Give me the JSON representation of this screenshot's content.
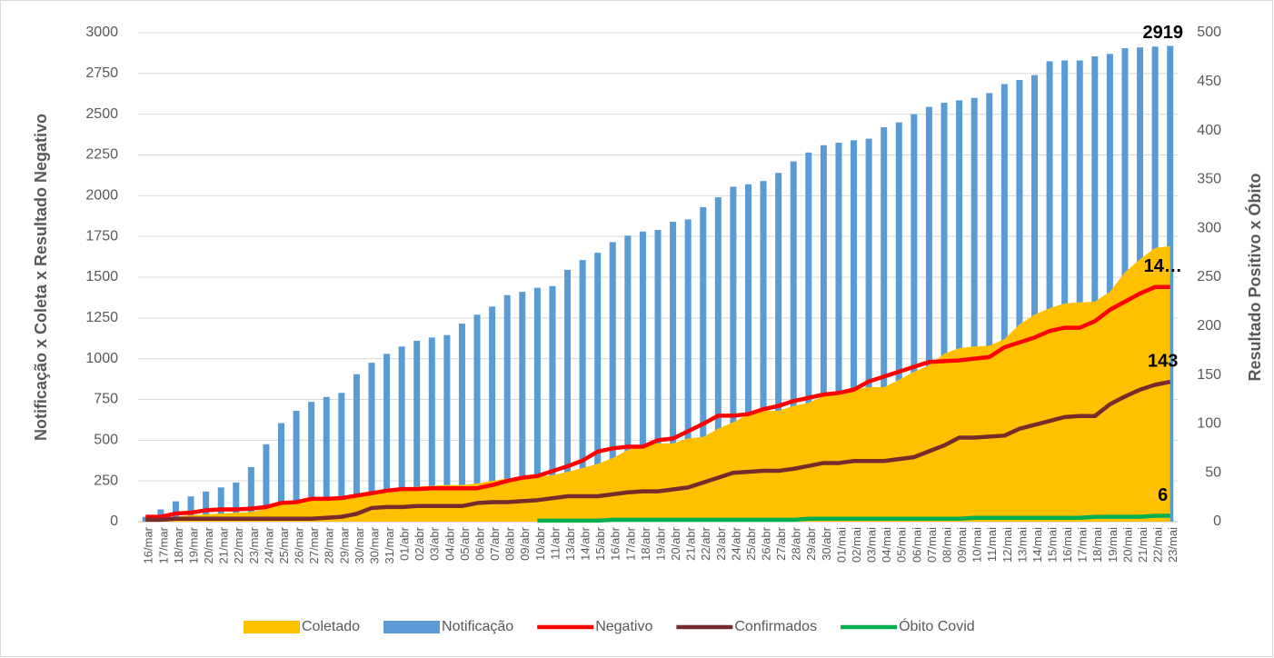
{
  "chart_data": {
    "type": "combo",
    "y_label": "Notificação x Coleta x Resultado Negativo",
    "y2_label": "Resultado Positivo x Óbito",
    "categories": [
      "16/mar",
      "17/mar",
      "18/mar",
      "19/mar",
      "20/mar",
      "21/mar",
      "22/mar",
      "23/mar",
      "24/mar",
      "25/mar",
      "26/mar",
      "27/mar",
      "28/mar",
      "29/mar",
      "30/mar",
      "30/mar",
      "31/mar",
      "01/abr",
      "02/abr",
      "03/abr",
      "04/abr",
      "05/abr",
      "06/abr",
      "07/abr",
      "08/abr",
      "09/abr",
      "10/abr",
      "11/abr",
      "13/abr",
      "14/abr",
      "15/abr",
      "16/abr",
      "17/abr",
      "18/abr",
      "19/abr",
      "20/abr",
      "21/abr",
      "22/abr",
      "23/abr",
      "24/abr",
      "25/abr",
      "26/abr",
      "27/abr",
      "28/abr",
      "29/abr",
      "30/abr",
      "01/mai",
      "02/mai",
      "03/mai",
      "04/mai",
      "05/mai",
      "06/mai",
      "07/mai",
      "08/mai",
      "09/mai",
      "10/mai",
      "11/mai",
      "12/mai",
      "13/mai",
      "14/mai",
      "15/mai",
      "16/mai",
      "17/mai",
      "18/mai",
      "19/mai",
      "20/mai",
      "21/mai",
      "22/mai",
      "23/mai"
    ],
    "ylim": [
      0,
      3000
    ],
    "yticks": [
      0,
      250,
      500,
      750,
      1000,
      1250,
      1500,
      1750,
      2000,
      2250,
      2500,
      2750,
      3000
    ],
    "y2lim": [
      0,
      500
    ],
    "y2ticks": [
      0,
      50,
      100,
      150,
      200,
      250,
      300,
      350,
      400,
      450,
      500
    ],
    "grid": true,
    "legend": "bottom",
    "series": [
      {
        "name": "Coletado",
        "type": "area",
        "color": "#ffc000",
        "values": [
          20,
          25,
          30,
          40,
          45,
          50,
          55,
          60,
          80,
          110,
          120,
          140,
          145,
          150,
          165,
          180,
          195,
          205,
          215,
          220,
          225,
          225,
          235,
          250,
          265,
          265,
          275,
          285,
          305,
          330,
          355,
          390,
          440,
          470,
          480,
          480,
          510,
          520,
          570,
          610,
          660,
          680,
          680,
          710,
          730,
          770,
          800,
          810,
          825,
          825,
          870,
          920,
          960,
          1030,
          1065,
          1075,
          1080,
          1120,
          1210,
          1270,
          1310,
          1340,
          1345,
          1350,
          1410,
          1530,
          1610,
          1680,
          1690
        ]
      },
      {
        "name": "Notificação",
        "type": "bar",
        "color": "#5b9bd5",
        "data_labels": "last",
        "values": [
          30,
          75,
          125,
          155,
          185,
          210,
          240,
          335,
          475,
          605,
          680,
          735,
          765,
          790,
          905,
          975,
          1030,
          1075,
          1110,
          1130,
          1145,
          1215,
          1270,
          1320,
          1390,
          1410,
          1435,
          1445,
          1545,
          1605,
          1650,
          1715,
          1755,
          1780,
          1790,
          1840,
          1855,
          1930,
          1990,
          2055,
          2070,
          2090,
          2140,
          2210,
          2265,
          2310,
          2325,
          2340,
          2350,
          2420,
          2450,
          2500,
          2545,
          2570,
          2585,
          2600,
          2630,
          2685,
          2710,
          2740,
          2825,
          2830,
          2830,
          2855,
          2870,
          2905,
          2910,
          2915,
          2919
        ]
      },
      {
        "name": "Negativo",
        "type": "line",
        "color": "#ff0000",
        "values": [
          30,
          30,
          50,
          55,
          70,
          75,
          75,
          80,
          90,
          115,
          120,
          140,
          140,
          145,
          160,
          175,
          190,
          200,
          200,
          205,
          205,
          205,
          205,
          225,
          250,
          270,
          280,
          310,
          340,
          375,
          430,
          450,
          460,
          460,
          500,
          510,
          555,
          600,
          650,
          650,
          660,
          690,
          710,
          740,
          760,
          780,
          790,
          810,
          860,
          890,
          920,
          950,
          980,
          985,
          990,
          1000,
          1010,
          1070,
          1100,
          1130,
          1170,
          1190,
          1190,
          1230,
          1300,
          1350,
          1400,
          1440,
          1440
        ],
        "value_labels": [
          null,
          null,
          null,
          null,
          null,
          null,
          null,
          null,
          null,
          null,
          null,
          null,
          null,
          null,
          null,
          null,
          null,
          null,
          null,
          null,
          null,
          null,
          null,
          null,
          null,
          null,
          null,
          null,
          null,
          null,
          null,
          null,
          null,
          null,
          null,
          null,
          null,
          null,
          null,
          null,
          null,
          null,
          null,
          null,
          null,
          null,
          null,
          null,
          null,
          null,
          null,
          null,
          null,
          null,
          null,
          null,
          null,
          null,
          null,
          null,
          null,
          null,
          null,
          null,
          null,
          null,
          null,
          null,
          "14…"
        ]
      },
      {
        "name": "Confirmados",
        "type": "line",
        "color": "#772b2b",
        "axis": "y2",
        "data_labels": "last",
        "values": [
          2,
          2,
          3,
          3,
          3,
          3,
          3,
          3,
          3,
          3,
          3,
          3,
          4,
          5,
          8,
          14,
          15,
          15,
          16,
          16,
          16,
          16,
          19,
          20,
          20,
          21,
          22,
          24,
          26,
          26,
          26,
          28,
          30,
          31,
          31,
          33,
          35,
          40,
          45,
          50,
          51,
          52,
          52,
          54,
          57,
          60,
          60,
          62,
          62,
          62,
          64,
          66,
          72,
          78,
          86,
          86,
          87,
          88,
          95,
          99,
          103,
          107,
          108,
          108,
          120,
          128,
          135,
          140,
          143
        ]
      },
      {
        "name": "Óbito Covid",
        "type": "line",
        "color": "#00b050",
        "axis": "y2",
        "data_labels": "last",
        "values": [
          null,
          null,
          null,
          null,
          null,
          null,
          null,
          null,
          null,
          null,
          null,
          null,
          null,
          null,
          null,
          null,
          null,
          null,
          null,
          null,
          null,
          null,
          null,
          null,
          null,
          null,
          1,
          1,
          1,
          1,
          1,
          2,
          2,
          2,
          2,
          2,
          2,
          2,
          2,
          2,
          2,
          2,
          2,
          2,
          3,
          3,
          3,
          3,
          3,
          3,
          3,
          3,
          3,
          3,
          3,
          4,
          4,
          4,
          4,
          4,
          4,
          4,
          4,
          5,
          5,
          5,
          5,
          6,
          6
        ]
      }
    ]
  }
}
